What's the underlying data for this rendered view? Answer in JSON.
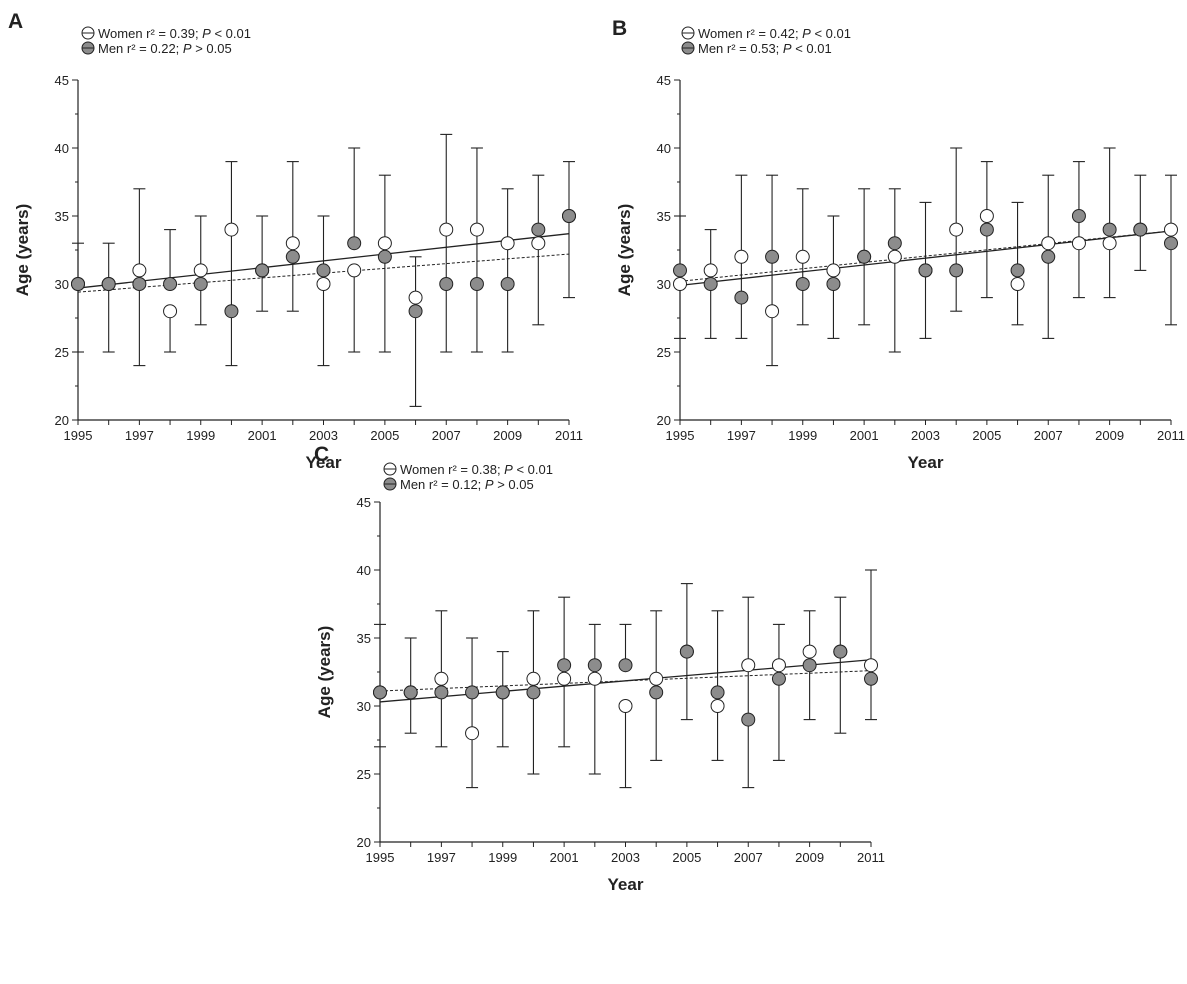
{
  "chart_data": [
    {
      "panel": "A",
      "type": "scatter",
      "xlabel": "Year",
      "ylabel": "Age (years)",
      "xlim": [
        1995,
        2011
      ],
      "ylim": [
        20,
        45
      ],
      "x_ticks": [
        "1995",
        "1997",
        "1999",
        "2001",
        "2003",
        "2005",
        "2007",
        "2009",
        "2011"
      ],
      "y_ticks": [
        "20",
        "25",
        "30",
        "35",
        "40",
        "45"
      ],
      "x": [
        1995,
        1996,
        1997,
        1998,
        1999,
        2000,
        2001,
        2002,
        2003,
        2004,
        2005,
        2006,
        2007,
        2008,
        2009,
        2010,
        2011
      ],
      "legend": [
        {
          "label": "Women r² = 0.39; ",
          "p_label": "P",
          "p_value": " < 0.01",
          "marker": "open"
        },
        {
          "label": "Men r² = 0.22; ",
          "p_label": "P",
          "p_value": " > 0.05",
          "marker": "filled"
        }
      ],
      "series": [
        {
          "name": "Women",
          "marker": "open",
          "values": [
            30,
            30,
            31,
            28,
            31,
            34,
            31,
            33,
            30,
            31,
            33,
            29,
            34,
            34,
            33,
            33,
            35
          ],
          "error_top": [
            33,
            33,
            37,
            null,
            35,
            39,
            35,
            39,
            null,
            null,
            38,
            32,
            41,
            40,
            37,
            null,
            39
          ],
          "error_bottom": [
            25,
            25,
            24,
            25,
            27,
            24,
            28,
            28,
            24,
            25,
            25,
            21,
            25,
            25,
            25,
            27,
            29
          ],
          "trend": [
            29.7,
            33.7
          ]
        },
        {
          "name": "Men",
          "marker": "filled",
          "values": [
            30,
            30,
            30,
            30,
            30,
            28,
            31,
            32,
            31,
            33,
            32,
            28,
            30,
            30,
            30,
            34,
            35
          ],
          "error_top": [
            null,
            null,
            null,
            34,
            null,
            null,
            null,
            null,
            35,
            40,
            null,
            null,
            null,
            null,
            null,
            38,
            null
          ],
          "error_bottom": [
            null,
            null,
            null,
            null,
            null,
            null,
            null,
            null,
            null,
            null,
            null,
            null,
            null,
            null,
            null,
            null,
            null
          ],
          "trend": [
            29.4,
            32.2
          ]
        }
      ]
    },
    {
      "panel": "B",
      "type": "scatter",
      "xlabel": "Year",
      "ylabel": "Age (years)",
      "xlim": [
        1995,
        2011
      ],
      "ylim": [
        20,
        45
      ],
      "x_ticks": [
        "1995",
        "1997",
        "1999",
        "2001",
        "2003",
        "2005",
        "2007",
        "2009",
        "2011"
      ],
      "y_ticks": [
        "20",
        "25",
        "30",
        "35",
        "40",
        "45"
      ],
      "x": [
        1995,
        1996,
        1997,
        1998,
        1999,
        2000,
        2001,
        2002,
        2003,
        2004,
        2005,
        2006,
        2007,
        2008,
        2009,
        2010,
        2011
      ],
      "legend": [
        {
          "label": "Women r² = 0.42; ",
          "p_label": "P",
          "p_value": " < 0.01",
          "marker": "open"
        },
        {
          "label": "Men r² = 0.53; ",
          "p_label": "P",
          "p_value": " < 0.01",
          "marker": "filled"
        }
      ],
      "series": [
        {
          "name": "Women",
          "marker": "open",
          "values": [
            30,
            31,
            32,
            28,
            32,
            31,
            32,
            32,
            31,
            34,
            35,
            30,
            33,
            33,
            33,
            34,
            34
          ],
          "error_top": [
            35,
            34,
            38,
            38,
            37,
            35,
            37,
            37,
            36,
            40,
            39,
            36,
            38,
            39,
            40,
            38,
            38
          ],
          "error_bottom": [
            26,
            26,
            26,
            24,
            27,
            26,
            27,
            25,
            26,
            28,
            29,
            27,
            26,
            29,
            29,
            31,
            27
          ],
          "trend": [
            29.9,
            33.9
          ]
        },
        {
          "name": "Men",
          "marker": "filled",
          "values": [
            31,
            30,
            29,
            32,
            30,
            30,
            32,
            33,
            31,
            31,
            34,
            31,
            32,
            35,
            34,
            34,
            33
          ],
          "error_top": [
            null,
            null,
            null,
            null,
            null,
            null,
            null,
            null,
            null,
            null,
            null,
            null,
            null,
            null,
            null,
            null,
            null
          ],
          "error_bottom": [
            null,
            null,
            null,
            null,
            null,
            null,
            null,
            null,
            null,
            null,
            null,
            null,
            null,
            null,
            null,
            null,
            null
          ],
          "trend": [
            30.2,
            33.9
          ]
        }
      ]
    },
    {
      "panel": "C",
      "type": "scatter",
      "xlabel": "Year",
      "ylabel": "Age (years)",
      "xlim": [
        1995,
        2011
      ],
      "ylim": [
        20,
        45
      ],
      "x_ticks": [
        "1995",
        "1997",
        "1999",
        "2001",
        "2003",
        "2005",
        "2007",
        "2009",
        "2011"
      ],
      "y_ticks": [
        "20",
        "25",
        "30",
        "35",
        "40",
        "45"
      ],
      "x": [
        1995,
        1996,
        1997,
        1998,
        1999,
        2000,
        2001,
        2002,
        2003,
        2004,
        2005,
        2006,
        2007,
        2008,
        2009,
        2010,
        2011
      ],
      "legend": [
        {
          "label": "Women r² = 0.38; ",
          "p_label": "P",
          "p_value": " < 0.01",
          "marker": "open"
        },
        {
          "label": "Men r² = 0.12; ",
          "p_label": "P",
          "p_value": " > 0.05",
          "marker": "filled"
        }
      ],
      "series": [
        {
          "name": "Women",
          "marker": "open",
          "values": [
            31,
            31,
            32,
            28,
            31,
            32,
            32,
            32,
            30,
            32,
            34,
            30,
            33,
            33,
            34,
            34,
            33
          ],
          "error_top": [
            36,
            35,
            37,
            35,
            34,
            37,
            null,
            36,
            null,
            37,
            null,
            37,
            38,
            36,
            null,
            38,
            40
          ],
          "error_bottom": [
            27,
            28,
            27,
            24,
            27,
            25,
            27,
            25,
            24,
            26,
            29,
            26,
            24,
            26,
            29,
            28,
            29
          ],
          "trend": [
            30.3,
            33.4
          ]
        },
        {
          "name": "Men",
          "marker": "filled",
          "values": [
            31,
            31,
            31,
            31,
            31,
            31,
            33,
            33,
            33,
            31,
            34,
            31,
            29,
            32,
            33,
            34,
            32
          ],
          "error_top": [
            null,
            null,
            null,
            null,
            null,
            null,
            38,
            null,
            36,
            null,
            39,
            null,
            null,
            null,
            37,
            null,
            null
          ],
          "error_bottom": [
            null,
            null,
            null,
            null,
            null,
            null,
            null,
            null,
            null,
            null,
            null,
            null,
            null,
            null,
            null,
            null,
            null
          ],
          "trend": [
            31.1,
            32.6
          ]
        }
      ]
    }
  ],
  "colors": {
    "axis": "#222222",
    "open_fill": "#ffffff",
    "filled_fill": "#8c8c8c",
    "marker_stroke": "#222222",
    "background": "#ffffff"
  },
  "line_styles": {
    "Women": "solid",
    "Men": "dashed"
  }
}
